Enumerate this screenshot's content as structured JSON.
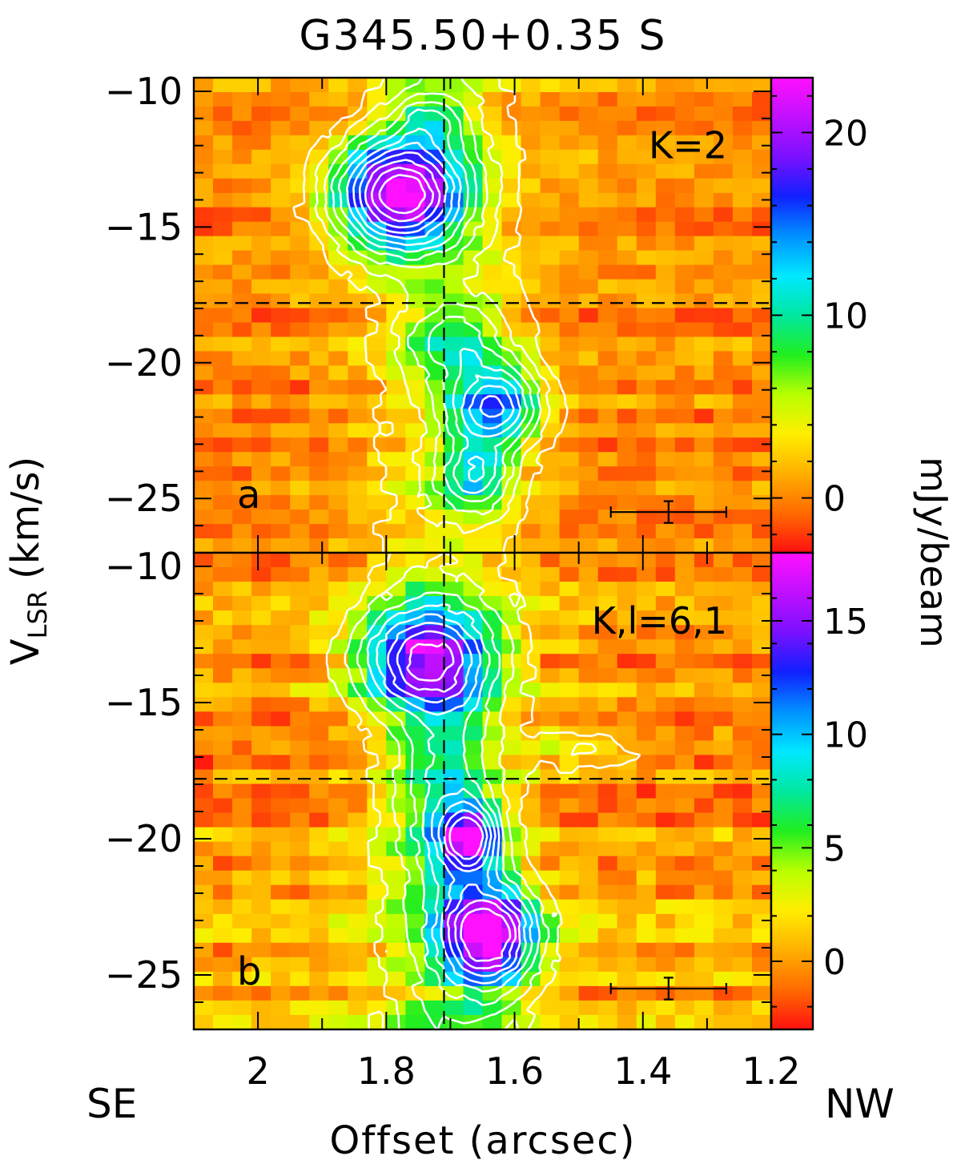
{
  "chart_data": {
    "type": "heatmap",
    "title": "G345.50+0.35 S",
    "xlabel": "Offset (arcsec)",
    "ylabel_main": "V",
    "ylabel_sub": "LSR",
    "ylabel_unit": "(km/s)",
    "colorbar_label": "mJy/beam",
    "x_left_label": "SE",
    "x_right_label": "NW",
    "xlim": [
      2.1,
      1.2
    ],
    "x_ticks": [
      2,
      1.8,
      1.6,
      1.4,
      1.2
    ],
    "x_tick_labels": [
      "2",
      "1.8",
      "1.6",
      "1.4",
      "1.2"
    ],
    "ref_offset": 1.71,
    "ref_velocity": -17.8,
    "panels": [
      {
        "label": "a",
        "annotation": "K=2",
        "ylim": [
          -9.5,
          -27
        ],
        "y_ticks": [
          -10,
          -15,
          -20,
          -25
        ],
        "y_tick_labels": [
          "−10",
          "−15",
          "−20",
          "−25"
        ],
        "colorbar_range": [
          -3,
          23
        ],
        "colorbar_ticks": [
          0,
          10,
          20
        ],
        "colorbar_tick_labels": [
          "0",
          "10",
          "20"
        ],
        "error_bar": {
          "x_center": 1.36,
          "x_halfwidth": 0.09,
          "y": -25.5,
          "y_halfwidth": 0.4
        },
        "components": [
          {
            "offset": 1.78,
            "velocity": -13.8,
            "peak": 22,
            "sigma_offset": 0.07,
            "sigma_velocity": 1.4
          },
          {
            "offset": 1.63,
            "velocity": -21.6,
            "peak": 14,
            "sigma_offset": 0.05,
            "sigma_velocity": 1.0
          },
          {
            "offset": 1.69,
            "velocity": -19.2,
            "peak": 6,
            "sigma_offset": 0.06,
            "sigma_velocity": 1.0
          },
          {
            "offset": 1.66,
            "velocity": -24.2,
            "peak": 9,
            "sigma_offset": 0.04,
            "sigma_velocity": 0.9
          },
          {
            "offset": 1.73,
            "velocity": -11.0,
            "peak": 6,
            "sigma_offset": 0.04,
            "sigma_velocity": 0.7
          }
        ]
      },
      {
        "label": "b",
        "annotation": "K,l=6,1",
        "ylim": [
          -9.5,
          -27
        ],
        "y_ticks": [
          -10,
          -15,
          -20,
          -25
        ],
        "y_tick_labels": [
          "−10",
          "−15",
          "−20",
          "−25"
        ],
        "colorbar_range": [
          -3,
          18
        ],
        "colorbar_ticks": [
          0,
          5,
          10,
          15
        ],
        "colorbar_tick_labels": [
          "0",
          "5",
          "10",
          "15"
        ],
        "error_bar": {
          "x_center": 1.36,
          "x_halfwidth": 0.09,
          "y": -25.5,
          "y_halfwidth": 0.4
        },
        "components": [
          {
            "offset": 1.74,
            "velocity": -13.4,
            "peak": 14,
            "sigma_offset": 0.07,
            "sigma_velocity": 1.3
          },
          {
            "offset": 1.64,
            "velocity": -23.6,
            "peak": 17,
            "sigma_offset": 0.05,
            "sigma_velocity": 1.3
          },
          {
            "offset": 1.67,
            "velocity": -20.0,
            "peak": 12,
            "sigma_offset": 0.03,
            "sigma_velocity": 0.8
          },
          {
            "offset": 1.7,
            "velocity": -18.5,
            "peak": 6,
            "sigma_offset": 0.05,
            "sigma_velocity": 2.5
          },
          {
            "offset": 1.49,
            "velocity": -16.8,
            "peak": 4,
            "sigma_offset": 0.06,
            "sigma_velocity": 0.5
          }
        ]
      }
    ],
    "grid": false,
    "colormap": [
      "#ff1010",
      "#ff6a00",
      "#ffb000",
      "#ffee00",
      "#b8ff00",
      "#20ee20",
      "#00e8a0",
      "#00e8ff",
      "#0090ff",
      "#1020ff",
      "#7a10ff",
      "#c010ff",
      "#ff10ff"
    ]
  }
}
